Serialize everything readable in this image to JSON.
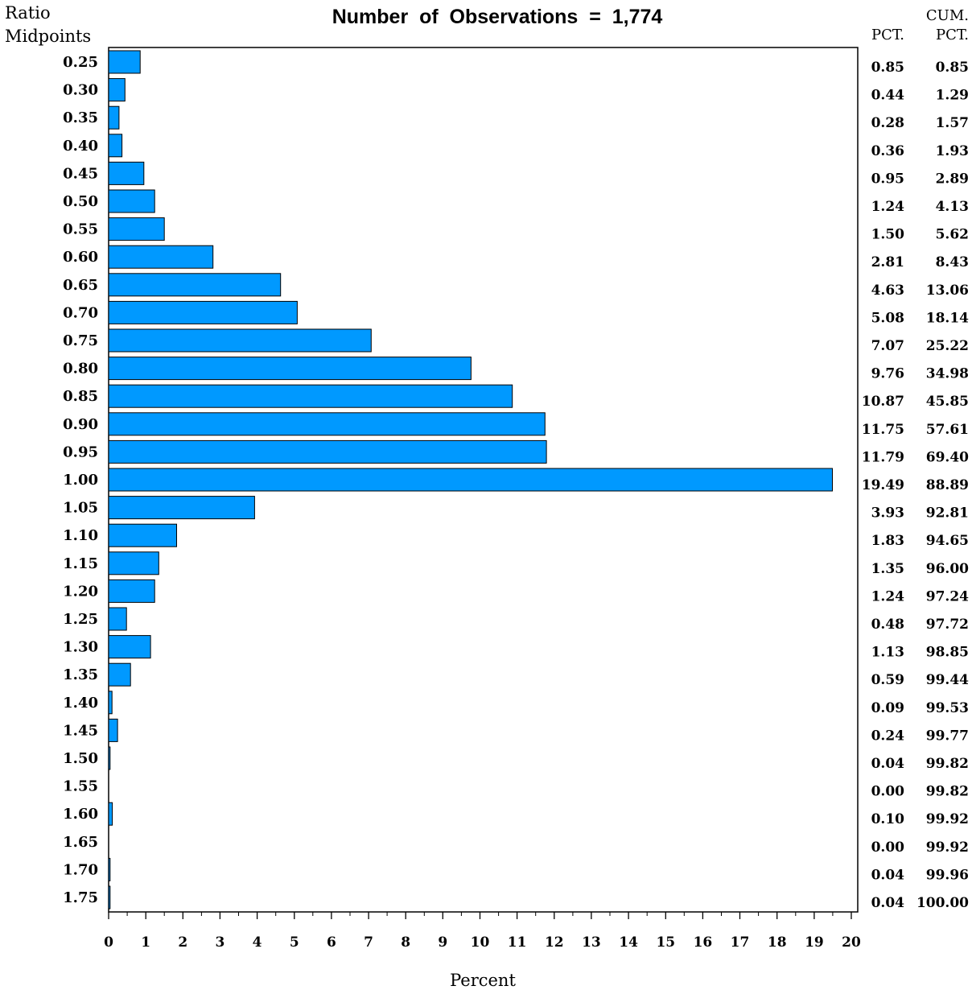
{
  "chart_data": {
    "type": "bar",
    "orientation": "horizontal",
    "title": "Number  of  Observations  =  1,774",
    "ylabel_line1": "Ratio",
    "ylabel_line2": "Midpoints",
    "xlabel": "Percent",
    "pct_header": "PCT.",
    "cum_header_line1": "CUM.",
    "cum_header_line2": "PCT.",
    "xlim": [
      0,
      20
    ],
    "x_ticks": [
      "0",
      "1",
      "2",
      "3",
      "4",
      "5",
      "6",
      "7",
      "8",
      "9",
      "10",
      "11",
      "12",
      "13",
      "14",
      "15",
      "16",
      "17",
      "18",
      "19",
      "20"
    ],
    "bar_color": "#0099ff",
    "bar_stroke": "#000000",
    "categories": [
      "0.25",
      "0.30",
      "0.35",
      "0.40",
      "0.45",
      "0.50",
      "0.55",
      "0.60",
      "0.65",
      "0.70",
      "0.75",
      "0.80",
      "0.85",
      "0.90",
      "0.95",
      "1.00",
      "1.05",
      "1.10",
      "1.15",
      "1.20",
      "1.25",
      "1.30",
      "1.35",
      "1.40",
      "1.45",
      "1.50",
      "1.55",
      "1.60",
      "1.65",
      "1.70",
      "1.75"
    ],
    "values": [
      0.85,
      0.44,
      0.28,
      0.36,
      0.95,
      1.24,
      1.5,
      2.81,
      4.63,
      5.08,
      7.07,
      9.76,
      10.87,
      11.75,
      11.79,
      19.49,
      3.93,
      1.83,
      1.35,
      1.24,
      0.48,
      1.13,
      0.59,
      0.09,
      0.24,
      0.04,
      0.0,
      0.1,
      0.0,
      0.04,
      0.04
    ],
    "pct_labels": [
      "0.85",
      "0.44",
      "0.28",
      "0.36",
      "0.95",
      "1.24",
      "1.50",
      "2.81",
      "4.63",
      "5.08",
      "7.07",
      "9.76",
      "10.87",
      "11.75",
      "11.79",
      "19.49",
      "3.93",
      "1.83",
      "1.35",
      "1.24",
      "0.48",
      "1.13",
      "0.59",
      "0.09",
      "0.24",
      "0.04",
      "0.00",
      "0.10",
      "0.00",
      "0.04",
      "0.04"
    ],
    "cum_pct_labels": [
      "0.85",
      "1.29",
      "1.57",
      "1.93",
      "2.89",
      "4.13",
      "5.62",
      "8.43",
      "13.06",
      "18.14",
      "25.22",
      "34.98",
      "45.85",
      "57.61",
      "69.40",
      "88.89",
      "92.81",
      "94.65",
      "96.00",
      "97.24",
      "97.72",
      "98.85",
      "99.44",
      "99.53",
      "99.77",
      "99.82",
      "99.82",
      "99.92",
      "99.92",
      "99.96",
      "100.00"
    ]
  }
}
